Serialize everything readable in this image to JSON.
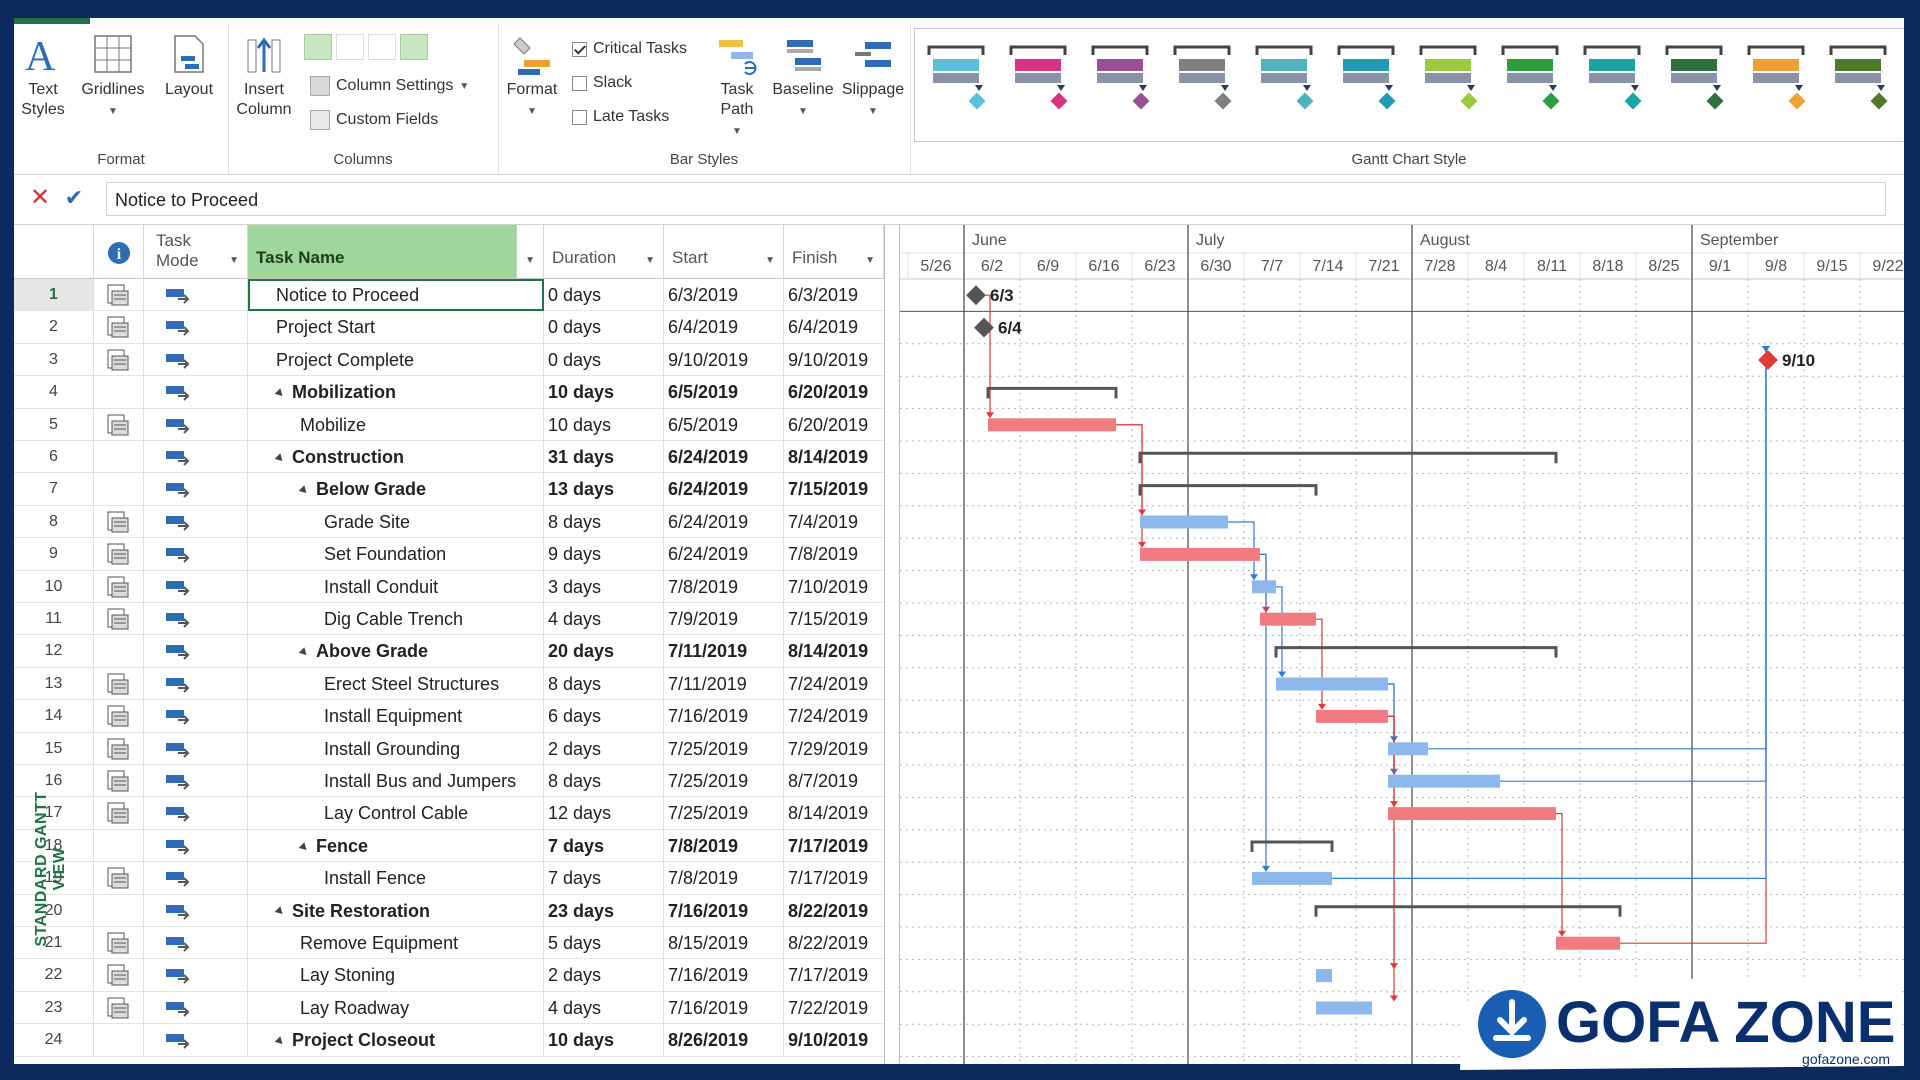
{
  "ribbon": {
    "format_group": {
      "label": "Format",
      "text_styles": "Text Styles",
      "gridlines": "Gridlines",
      "layout": "Layout"
    },
    "columns_group": {
      "label": "Columns",
      "insert_column": "Insert Column",
      "column_settings": "Column Settings",
      "custom_fields": "Custom Fields"
    },
    "bar_styles_group": {
      "label": "Bar Styles",
      "format": "Format",
      "critical_tasks": "Critical Tasks",
      "slack": "Slack",
      "late_tasks": "Late Tasks",
      "task_path": "Task Path",
      "baseline": "Baseline",
      "slippage": "Slippage"
    },
    "gantt_style_label": "Gantt Chart Style",
    "style_colors": [
      "#5bc0de",
      "#d63384",
      "#9b4f96",
      "#7f7f7f",
      "#4fb3bf",
      "#1f9bb5",
      "#9bcb3c",
      "#2a9d3c",
      "#1aa3a3",
      "#2f6f3e",
      "#f0a030",
      "#4e7a2a"
    ]
  },
  "formula_bar": {
    "value": "Notice to Proceed"
  },
  "view_label": "STANDARD GANTT VIEW",
  "columns": {
    "info_icon": "i",
    "task_mode": "Task Mode",
    "task_name": "Task Name",
    "duration": "Duration",
    "start": "Start",
    "finish": "Finish"
  },
  "timeline": {
    "months": [
      {
        "label": "June",
        "date": "2019-06-02"
      },
      {
        "label": "July",
        "date": "2019-06-30"
      },
      {
        "label": "August",
        "date": "2019-07-28"
      },
      {
        "label": "September",
        "date": "2019-09-01"
      }
    ],
    "weeks": [
      "5/26",
      "6/2",
      "6/9",
      "6/16",
      "6/23",
      "6/30",
      "7/7",
      "7/14",
      "7/21",
      "7/28",
      "8/4",
      "8/11",
      "8/18",
      "8/25",
      "9/1",
      "9/8",
      "9/15",
      "9/22"
    ]
  },
  "tasks": [
    {
      "id": "1",
      "name": "Notice to Proceed",
      "duration": "0 days",
      "start": "6/3/2019",
      "finish": "6/3/2019",
      "level": 0,
      "summary": false,
      "milestone": true,
      "label": "6/3",
      "critical": false,
      "s": "2019-06-03",
      "f": "2019-06-03"
    },
    {
      "id": "2",
      "name": "Project Start",
      "duration": "0 days",
      "start": "6/4/2019",
      "finish": "6/4/2019",
      "level": 0,
      "summary": false,
      "milestone": true,
      "label": "6/4",
      "critical": false,
      "s": "2019-06-04",
      "f": "2019-06-04"
    },
    {
      "id": "3",
      "name": "Project Complete",
      "duration": "0 days",
      "start": "9/10/2019",
      "finish": "9/10/2019",
      "level": 0,
      "summary": false,
      "milestone": true,
      "label": "9/10",
      "critical": true,
      "s": "2019-09-10",
      "f": "2019-09-10"
    },
    {
      "id": "4",
      "name": "Mobilization",
      "duration": "10 days",
      "start": "6/5/2019",
      "finish": "6/20/2019",
      "level": 0,
      "summary": true,
      "critical": false,
      "s": "2019-06-05",
      "f": "2019-06-20"
    },
    {
      "id": "5",
      "name": "Mobilize",
      "duration": "10 days",
      "start": "6/5/2019",
      "finish": "6/20/2019",
      "level": 1,
      "summary": false,
      "critical": true,
      "s": "2019-06-05",
      "f": "2019-06-20"
    },
    {
      "id": "6",
      "name": "Construction",
      "duration": "31 days",
      "start": "6/24/2019",
      "finish": "8/14/2019",
      "level": 0,
      "summary": true,
      "critical": false,
      "s": "2019-06-24",
      "f": "2019-08-14"
    },
    {
      "id": "7",
      "name": "Below Grade",
      "duration": "13 days",
      "start": "6/24/2019",
      "finish": "7/15/2019",
      "level": 1,
      "summary": true,
      "critical": false,
      "s": "2019-06-24",
      "f": "2019-07-15"
    },
    {
      "id": "8",
      "name": "Grade Site",
      "duration": "8 days",
      "start": "6/24/2019",
      "finish": "7/4/2019",
      "level": 2,
      "summary": false,
      "critical": false,
      "s": "2019-06-24",
      "f": "2019-07-04"
    },
    {
      "id": "9",
      "name": "Set Foundation",
      "duration": "9 days",
      "start": "6/24/2019",
      "finish": "7/8/2019",
      "level": 2,
      "summary": false,
      "critical": true,
      "s": "2019-06-24",
      "f": "2019-07-08"
    },
    {
      "id": "10",
      "name": "Install Conduit",
      "duration": "3 days",
      "start": "7/8/2019",
      "finish": "7/10/2019",
      "level": 2,
      "summary": false,
      "critical": false,
      "s": "2019-07-08",
      "f": "2019-07-10"
    },
    {
      "id": "11",
      "name": "Dig Cable Trench",
      "duration": "4 days",
      "start": "7/9/2019",
      "finish": "7/15/2019",
      "level": 2,
      "summary": false,
      "critical": true,
      "s": "2019-07-09",
      "f": "2019-07-15"
    },
    {
      "id": "12",
      "name": "Above Grade",
      "duration": "20 days",
      "start": "7/11/2019",
      "finish": "8/14/2019",
      "level": 1,
      "summary": true,
      "critical": false,
      "s": "2019-07-11",
      "f": "2019-08-14"
    },
    {
      "id": "13",
      "name": "Erect Steel Structures",
      "duration": "8 days",
      "start": "7/11/2019",
      "finish": "7/24/2019",
      "level": 2,
      "summary": false,
      "critical": false,
      "s": "2019-07-11",
      "f": "2019-07-24"
    },
    {
      "id": "14",
      "name": "Install Equipment",
      "duration": "6 days",
      "start": "7/16/2019",
      "finish": "7/24/2019",
      "level": 2,
      "summary": false,
      "critical": true,
      "s": "2019-07-16",
      "f": "2019-07-24"
    },
    {
      "id": "15",
      "name": "Install Grounding",
      "duration": "2 days",
      "start": "7/25/2019",
      "finish": "7/29/2019",
      "level": 2,
      "summary": false,
      "critical": false,
      "s": "2019-07-25",
      "f": "2019-07-29"
    },
    {
      "id": "16",
      "name": "Install Bus and Jumpers",
      "duration": "8 days",
      "start": "7/25/2019",
      "finish": "8/7/2019",
      "level": 2,
      "summary": false,
      "critical": false,
      "s": "2019-07-25",
      "f": "2019-08-07"
    },
    {
      "id": "17",
      "name": "Lay Control Cable",
      "duration": "12 days",
      "start": "7/25/2019",
      "finish": "8/14/2019",
      "level": 2,
      "summary": false,
      "critical": true,
      "s": "2019-07-25",
      "f": "2019-08-14"
    },
    {
      "id": "18",
      "name": "Fence",
      "duration": "7 days",
      "start": "7/8/2019",
      "finish": "7/17/2019",
      "level": 1,
      "summary": true,
      "critical": false,
      "s": "2019-07-08",
      "f": "2019-07-17"
    },
    {
      "id": "19",
      "name": "Install Fence",
      "duration": "7 days",
      "start": "7/8/2019",
      "finish": "7/17/2019",
      "level": 2,
      "summary": false,
      "critical": false,
      "s": "2019-07-08",
      "f": "2019-07-17"
    },
    {
      "id": "20",
      "name": "Site Restoration",
      "duration": "23 days",
      "start": "7/16/2019",
      "finish": "8/22/2019",
      "level": 0,
      "summary": true,
      "critical": false,
      "s": "2019-07-16",
      "f": "2019-08-22"
    },
    {
      "id": "21",
      "name": "Remove Equipment",
      "duration": "5 days",
      "start": "8/15/2019",
      "finish": "8/22/2019",
      "level": 1,
      "summary": false,
      "critical": true,
      "s": "2019-08-15",
      "f": "2019-08-22"
    },
    {
      "id": "22",
      "name": "Lay Stoning",
      "duration": "2 days",
      "start": "7/16/2019",
      "finish": "7/17/2019",
      "level": 1,
      "summary": false,
      "critical": false,
      "s": "2019-07-16",
      "f": "2019-07-17"
    },
    {
      "id": "23",
      "name": "Lay Roadway",
      "duration": "4 days",
      "start": "7/16/2019",
      "finish": "7/22/2019",
      "level": 1,
      "summary": false,
      "critical": false,
      "s": "2019-07-16",
      "f": "2019-07-22"
    },
    {
      "id": "24",
      "name": "Project Closeout",
      "duration": "10 days",
      "start": "8/26/2019",
      "finish": "9/10/2019",
      "level": 0,
      "summary": true,
      "critical": false,
      "s": "2019-08-26",
      "f": "2019-09-10"
    }
  ],
  "watermark": {
    "brand": "GOFA ZONE",
    "site": "gofazone.com"
  },
  "colors": {
    "accent": "#217346",
    "task_bar": "#8cb8ec",
    "critical_bar": "#f07c82",
    "summary": "#555555",
    "selected_header": "#9fd69b"
  }
}
